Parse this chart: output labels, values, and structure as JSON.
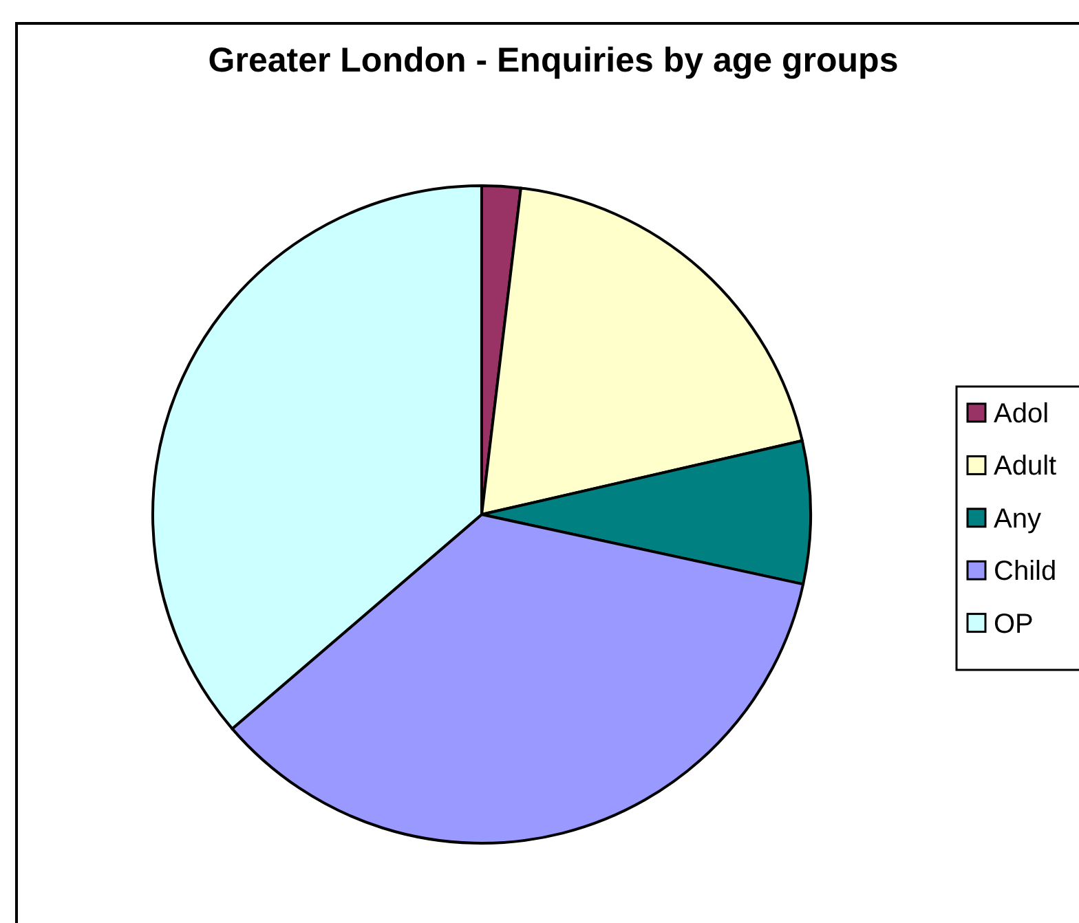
{
  "chart_data": {
    "type": "pie",
    "title": "Greater London - Enquiries by age groups",
    "categories": [
      "Adol",
      "Adult",
      "Any",
      "Child",
      "OP"
    ],
    "values": [
      1.9,
      19.5,
      7.0,
      35.3,
      36.3
    ],
    "colors": [
      "#993366",
      "#ffffcc",
      "#008080",
      "#9999ff",
      "#ccffff"
    ],
    "legend": "right"
  }
}
